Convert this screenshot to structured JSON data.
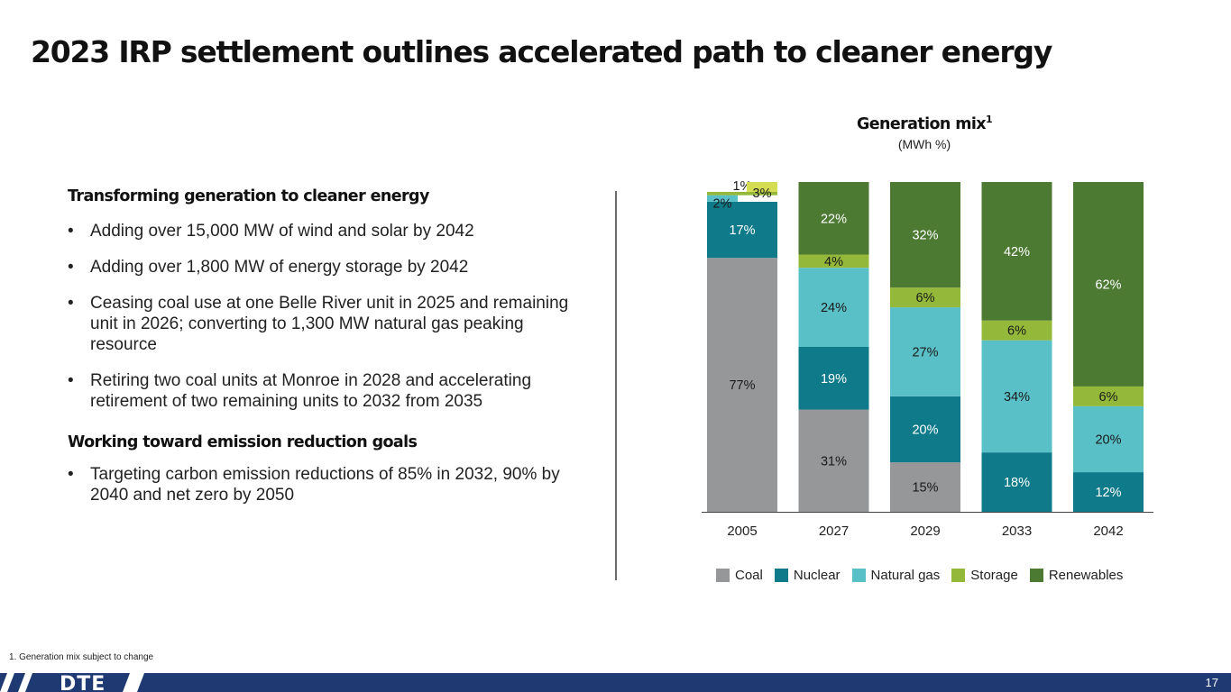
{
  "page": {
    "title": "2023 IRP settlement outlines accelerated path to cleaner energy",
    "footnote": "1.   Generation mix subject to change",
    "page_number": "17",
    "logo_text": "DTE"
  },
  "left": {
    "heading1": "Transforming generation to cleaner energy",
    "bullets1": [
      "Adding over 15,000 MW of wind and solar by 2042",
      "Adding over 1,800 MW of energy storage by 2042",
      "Ceasing coal use at one Belle River unit in 2025 and remaining unit in 2026; converting to 1,300 MW natural gas peaking resource",
      "Retiring two coal units at Monroe in 2028 and accelerating retirement of two remaining units to 2032 from 2035"
    ],
    "heading2": "Working toward emission reduction goals",
    "bullets2": [
      "Targeting carbon emission reductions of 85% in 2032, 90% by 2040 and net zero by 2050"
    ],
    "bullet_char": "•"
  },
  "chart_data": {
    "type": "bar",
    "stacked": true,
    "title": "Generation mix",
    "title_superscript": "1",
    "subtitle": "(MWh %)",
    "categories": [
      "2005",
      "2027",
      "2029",
      "2033",
      "2042"
    ],
    "ylim": [
      0,
      100
    ],
    "legend_position": "bottom",
    "series": [
      {
        "name": "Coal",
        "color": "#959799",
        "values": [
          77,
          31,
          15,
          0,
          0
        ],
        "labels": [
          "77%",
          "31%",
          "15%",
          "",
          ""
        ],
        "label_color": "#1a1a1a"
      },
      {
        "name": "Nuclear",
        "color": "#0e7a8a",
        "values": [
          17,
          19,
          20,
          18,
          12
        ],
        "labels": [
          "17%",
          "19%",
          "20%",
          "18%",
          "12%"
        ],
        "label_color": "#ffffff"
      },
      {
        "name": "Natural gas",
        "color": "#5ac0c8",
        "values": [
          2,
          24,
          27,
          34,
          20
        ],
        "labels": [
          "2%",
          "24%",
          "27%",
          "34%",
          "20%"
        ],
        "label_color": "#1a1a1a"
      },
      {
        "name": "Storage",
        "color": "#93b83a",
        "values": [
          1,
          4,
          6,
          6,
          6
        ],
        "labels": [
          "1%",
          "4%",
          "6%",
          "6%",
          "6%"
        ],
        "label_color": "#1a1a1a"
      },
      {
        "name": "Renewables",
        "color": "#4d7a33",
        "values": [
          3,
          22,
          32,
          42,
          62
        ],
        "labels": [
          "3%",
          "22%",
          "32%",
          "42%",
          "62%"
        ],
        "label_color": "#ffffff"
      }
    ],
    "special": {
      "2005_storage_label_offset": "above",
      "2005_renewables_color": "#d5dd52",
      "2005_renewables_label_color": "#1a1a1a"
    }
  }
}
